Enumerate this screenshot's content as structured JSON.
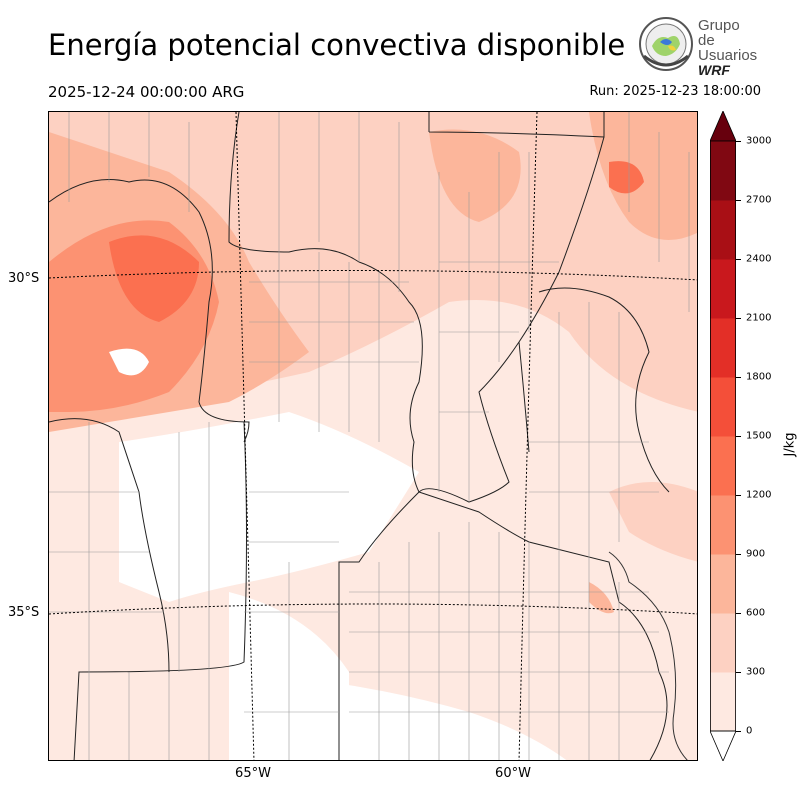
{
  "header": {
    "title": "Energía potencial convectiva disponible",
    "valid_time": "2025-12-24 00:00:00 ARG",
    "run_time": "Run: 2025-12-23 18:00:00"
  },
  "logo": {
    "line1": "Grupo de",
    "line2": "Usuarios",
    "line3": "WRF"
  },
  "map": {
    "lat_labels": [
      "30°S",
      "35°S"
    ],
    "lon_labels": [
      "65°W",
      "60°W"
    ]
  },
  "colorbar": {
    "unit": "J/kg",
    "ticks": [
      "3000",
      "2700",
      "2400",
      "2100",
      "1800",
      "1500",
      "1200",
      "900",
      "600",
      "300",
      "0"
    ],
    "colors": [
      "#fee9e1",
      "#fdd1c2",
      "#fcb69b",
      "#fc9272",
      "#fb7050",
      "#f44f39",
      "#e32f27",
      "#c9181d",
      "#a90f15",
      "#800812"
    ],
    "over_color": "#67000d"
  }
}
